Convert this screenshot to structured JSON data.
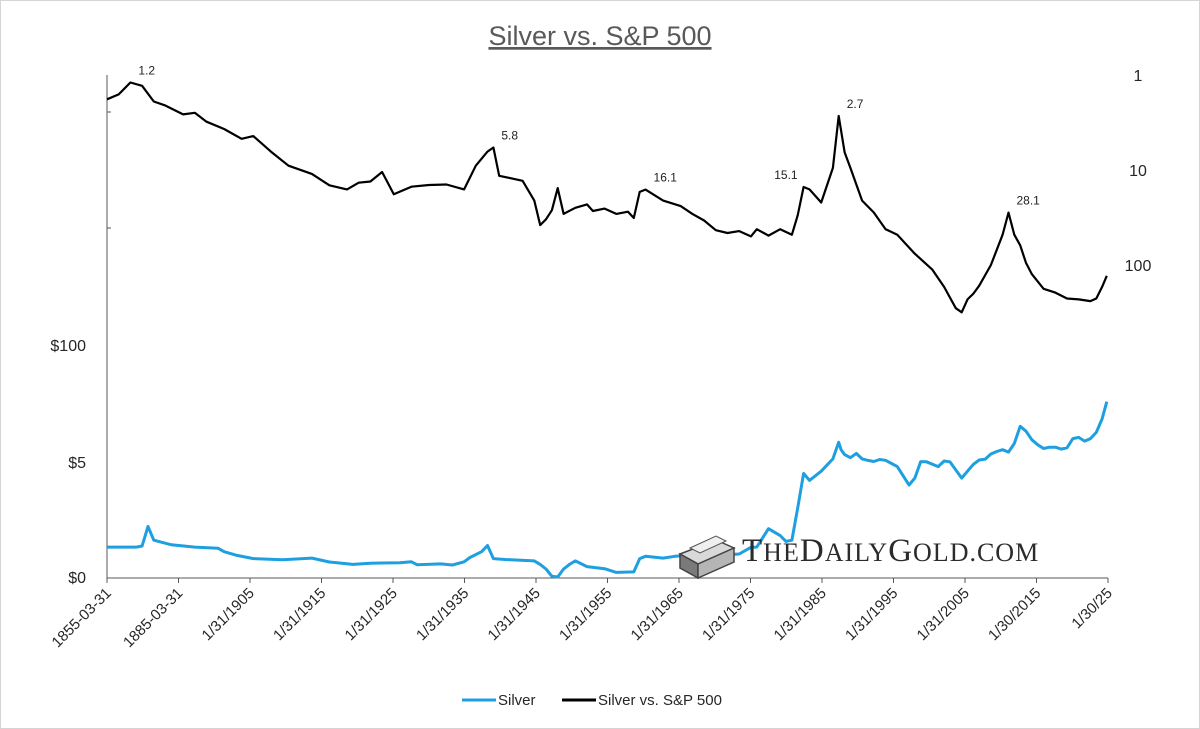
{
  "chart_data": {
    "type": "line",
    "title": "Silver vs. S&P 500",
    "xlabel": "",
    "x_tick_labels": [
      "1855-03-31",
      "1885-03-31",
      "1/31/1905",
      "1/31/1915",
      "1/31/1925",
      "1/31/1935",
      "1/31/1945",
      "1/31/1955",
      "1/31/1965",
      "1/31/1975",
      "1/31/1985",
      "1/31/1995",
      "1/31/2005",
      "1/30/2015",
      "1/30/25"
    ],
    "xlim": [
      1855,
      2026
    ],
    "left_axis": {
      "ticks": [
        "$0",
        "$5",
        "$100"
      ],
      "tick_values": [
        0,
        5,
        100
      ],
      "scale": "piecewise (non-linear)"
    },
    "right_axis": {
      "ticks": [
        "1",
        "10",
        "100"
      ],
      "tick_values": [
        1,
        10,
        100
      ],
      "scale": "log",
      "inverted": true,
      "ylim": [
        1,
        1000
      ]
    },
    "legend_position": "bottom",
    "series": [
      {
        "name": "Silver",
        "color": "#1e9fe0",
        "axis": "left",
        "points": [
          [
            1855,
            1.3
          ],
          [
            1860,
            1.3
          ],
          [
            1861,
            1.35
          ],
          [
            1862,
            2.2
          ],
          [
            1863,
            1.6
          ],
          [
            1866,
            1.4
          ],
          [
            1870,
            1.3
          ],
          [
            1874,
            1.25
          ],
          [
            1875,
            1.1
          ],
          [
            1877,
            0.95
          ],
          [
            1880,
            0.8
          ],
          [
            1885,
            0.75
          ],
          [
            1890,
            0.82
          ],
          [
            1893,
            0.65
          ],
          [
            1897,
            0.55
          ],
          [
            1900,
            0.6
          ],
          [
            1905,
            0.62
          ],
          [
            1907,
            0.66
          ],
          [
            1908,
            0.53
          ],
          [
            1912,
            0.57
          ],
          [
            1914,
            0.52
          ],
          [
            1916,
            0.66
          ],
          [
            1917,
            0.85
          ],
          [
            1919,
            1.1
          ],
          [
            1920,
            1.37
          ],
          [
            1921,
            0.8
          ],
          [
            1923,
            0.76
          ],
          [
            1928,
            0.7
          ],
          [
            1929,
            0.55
          ],
          [
            1930,
            0.35
          ],
          [
            1931,
            0.03
          ],
          [
            1932,
            0.0
          ],
          [
            1933,
            0.35
          ],
          [
            1934,
            0.55
          ],
          [
            1935,
            0.7
          ],
          [
            1937,
            0.45
          ],
          [
            1940,
            0.36
          ],
          [
            1942,
            0.2
          ],
          [
            1945,
            0.22
          ],
          [
            1946,
            0.8
          ],
          [
            1947,
            0.9
          ],
          [
            1950,
            0.82
          ],
          [
            1952,
            0.9
          ],
          [
            1955,
            0.95
          ],
          [
            1960,
            0.95
          ],
          [
            1963,
            1.0
          ],
          [
            1965,
            1.29
          ],
          [
            1966,
            1.3
          ],
          [
            1968,
            2.1
          ],
          [
            1970,
            1.8
          ],
          [
            1971,
            1.55
          ],
          [
            1972,
            1.6
          ],
          [
            1973,
            3.0
          ],
          [
            1974,
            4.5
          ],
          [
            1975,
            4.2
          ],
          [
            1977,
            4.6
          ],
          [
            1979,
            7.5
          ],
          [
            1980,
            21.0
          ],
          [
            1980.4,
            15.0
          ],
          [
            1981,
            11.0
          ],
          [
            1982,
            8.5
          ],
          [
            1983,
            12.0
          ],
          [
            1984,
            7.5
          ],
          [
            1985,
            6.3
          ],
          [
            1986,
            5.4
          ],
          [
            1987,
            7.0
          ],
          [
            1988,
            6.4
          ],
          [
            1990,
            4.8
          ],
          [
            1992,
            4.0
          ],
          [
            1993,
            4.3
          ],
          [
            1994,
            5.3
          ],
          [
            1995,
            5.2
          ],
          [
            1997,
            4.8
          ],
          [
            1998,
            5.8
          ],
          [
            1999,
            5.2
          ],
          [
            2001,
            4.3
          ],
          [
            2002,
            4.6
          ],
          [
            2003,
            4.9
          ],
          [
            2004,
            6.6
          ],
          [
            2005,
            7.3
          ],
          [
            2006,
            11.5
          ],
          [
            2007,
            13.5
          ],
          [
            2008,
            15.0
          ],
          [
            2009,
            13.0
          ],
          [
            2010,
            20.0
          ],
          [
            2011,
            34.0
          ],
          [
            2012,
            30.0
          ],
          [
            2013,
            23.0
          ],
          [
            2014,
            19.0
          ],
          [
            2015,
            16.0
          ],
          [
            2016,
            17.0
          ],
          [
            2017,
            17.0
          ],
          [
            2018,
            15.5
          ],
          [
            2019,
            16.5
          ],
          [
            2020,
            24.0
          ],
          [
            2021,
            25.0
          ],
          [
            2022,
            22.0
          ],
          [
            2023,
            24.0
          ],
          [
            2024,
            29.0
          ],
          [
            2025,
            40.0
          ],
          [
            2025.8,
            54.0
          ]
        ]
      },
      {
        "name": "Silver vs. S&P 500",
        "color": "#000000",
        "axis": "right",
        "points": [
          [
            1855,
            1.8
          ],
          [
            1857,
            1.6
          ],
          [
            1859,
            1.2
          ],
          [
            1861,
            1.3
          ],
          [
            1863,
            1.9
          ],
          [
            1865,
            2.1
          ],
          [
            1868,
            2.6
          ],
          [
            1870,
            2.5
          ],
          [
            1872,
            3.1
          ],
          [
            1875,
            3.7
          ],
          [
            1878,
            4.7
          ],
          [
            1880,
            4.4
          ],
          [
            1883,
            6.4
          ],
          [
            1886,
            9.0
          ],
          [
            1890,
            11.0
          ],
          [
            1893,
            14.5
          ],
          [
            1896,
            16.0
          ],
          [
            1898,
            13.6
          ],
          [
            1900,
            13.2
          ],
          [
            1902,
            10.5
          ],
          [
            1904,
            18.0
          ],
          [
            1907,
            15.0
          ],
          [
            1910,
            14.4
          ],
          [
            1913,
            14.2
          ],
          [
            1916,
            16.0
          ],
          [
            1918,
            9.0
          ],
          [
            1920,
            6.4
          ],
          [
            1921,
            5.8
          ],
          [
            1922,
            11.5
          ],
          [
            1926,
            13.0
          ],
          [
            1928,
            21.0
          ],
          [
            1929,
            38.0
          ],
          [
            1930,
            33.0
          ],
          [
            1931,
            26.5
          ],
          [
            1932,
            15.5
          ],
          [
            1933,
            29.0
          ],
          [
            1935,
            25.0
          ],
          [
            1937,
            23.0
          ],
          [
            1938,
            27.0
          ],
          [
            1940,
            25.5
          ],
          [
            1942,
            29.0
          ],
          [
            1944,
            27.5
          ],
          [
            1945,
            32.0
          ],
          [
            1946,
            17.0
          ],
          [
            1947,
            16.1
          ],
          [
            1950,
            21.0
          ],
          [
            1953,
            24.0
          ],
          [
            1955,
            29.0
          ],
          [
            1957,
            34.0
          ],
          [
            1959,
            43.0
          ],
          [
            1961,
            46.0
          ],
          [
            1963,
            44.0
          ],
          [
            1965,
            50.0
          ],
          [
            1966,
            42.0
          ],
          [
            1968,
            49.0
          ],
          [
            1970,
            42.0
          ],
          [
            1972,
            48.0
          ],
          [
            1973,
            30.0
          ],
          [
            1974,
            15.1
          ],
          [
            1975,
            16.0
          ],
          [
            1977,
            22.0
          ],
          [
            1979,
            9.5
          ],
          [
            1980,
            2.7
          ],
          [
            1981,
            6.5
          ],
          [
            1982,
            9.5
          ],
          [
            1984,
            21.0
          ],
          [
            1986,
            28.0
          ],
          [
            1988,
            42.0
          ],
          [
            1990,
            48.0
          ],
          [
            1993,
            76.0
          ],
          [
            1996,
            112.0
          ],
          [
            1998,
            170.0
          ],
          [
            2000,
            285.0
          ],
          [
            2001,
            315.0
          ],
          [
            2002,
            230.0
          ],
          [
            2003,
            200.0
          ],
          [
            2004,
            165.0
          ],
          [
            2006,
            100.0
          ],
          [
            2008,
            48.0
          ],
          [
            2009,
            28.1
          ],
          [
            2010,
            48.0
          ],
          [
            2011,
            62.0
          ],
          [
            2012,
            95.0
          ],
          [
            2013,
            125.0
          ],
          [
            2015,
            178.0
          ],
          [
            2017,
            195.0
          ],
          [
            2019,
            225.0
          ],
          [
            2021,
            230.0
          ],
          [
            2023,
            240.0
          ],
          [
            2024,
            225.0
          ],
          [
            2025,
            170.0
          ],
          [
            2025.8,
            130.0
          ]
        ]
      }
    ],
    "annotations": [
      {
        "text": "1.2",
        "x": 1859,
        "y": 1.2,
        "series": "Silver vs. S&P 500"
      },
      {
        "text": "5.8",
        "x": 1921,
        "y": 5.8,
        "series": "Silver vs. S&P 500"
      },
      {
        "text": "16.1",
        "x": 1947,
        "y": 16.1,
        "series": "Silver vs. S&P 500"
      },
      {
        "text": "15.1",
        "x": 1974,
        "y": 15.1,
        "series": "Silver vs. S&P 500"
      },
      {
        "text": "2.7",
        "x": 1980,
        "y": 2.7,
        "series": "Silver vs. S&P 500"
      },
      {
        "text": "28.1",
        "x": 2009,
        "y": 28.1,
        "series": "Silver vs. S&P 500"
      }
    ]
  },
  "watermark": {
    "text": "TheDailyGold.com",
    "icon": "gold-bar-icon"
  }
}
